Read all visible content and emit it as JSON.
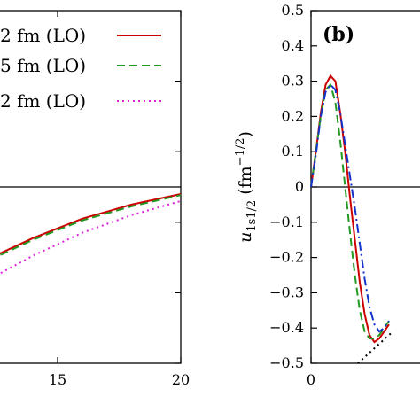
{
  "chart_data": [
    {
      "type": "line",
      "panel": "a",
      "xlim": [
        10,
        20
      ],
      "ylim": [
        -0.7,
        0.5
      ],
      "x_ticks": [
        15,
        20
      ],
      "x_tick_labels": [
        "15",
        "20"
      ],
      "legend": [
        {
          "text": "2 fm (LO)",
          "color": "#cc0000",
          "style": "solid"
        },
        {
          "text": "5 fm (LO)",
          "color": "#229922",
          "style": "dashed"
        },
        {
          "text": "2 fm (LO)",
          "color": "#dd22dd",
          "style": "dotted"
        }
      ],
      "series": [
        {
          "x": [
            10,
            12,
            14,
            16,
            18,
            20
          ],
          "y": [
            -0.285,
            -0.21,
            -0.145,
            -0.09,
            -0.05,
            -0.02
          ],
          "color": "#cc0000",
          "style": "solid"
        },
        {
          "x": [
            10,
            12,
            14,
            16,
            18,
            20
          ],
          "y": [
            -0.29,
            -0.215,
            -0.15,
            -0.095,
            -0.055,
            -0.023
          ],
          "color": "#229922",
          "style": "dashed"
        },
        {
          "x": [
            10,
            12,
            14,
            16,
            18,
            20
          ],
          "y": [
            -0.34,
            -0.27,
            -0.195,
            -0.13,
            -0.08,
            -0.04
          ],
          "color": "#dd22dd",
          "style": "dotted"
        }
      ]
    },
    {
      "type": "line",
      "panel": "b",
      "label": "(b)",
      "ylabel": "u1s1/2 (fm−1/2)",
      "ylabel_parts": {
        "symbol": "u",
        "sub": "1s1/2",
        "unit_open": "(fm",
        "unit_sup": "−1/2",
        "unit_close": ")"
      },
      "xlim": [
        0,
        10
      ],
      "ylim": [
        -0.5,
        0.5
      ],
      "y_ticks": [
        0.5,
        0.4,
        0.3,
        0.2,
        0.1,
        0,
        -0.1,
        -0.2,
        -0.3,
        -0.4,
        -0.5
      ],
      "y_tick_labels": [
        "0.5",
        "0.4",
        "0.3",
        "0.2",
        "0.1",
        "0",
        "−0.1",
        "−0.2",
        "−0.3",
        "−0.4",
        "−0.5"
      ],
      "x_ticks": [
        0
      ],
      "x_tick_labels": [
        "0"
      ],
      "series": [
        {
          "x": [
            0,
            0.25,
            0.5,
            0.75,
            1.0,
            1.25,
            1.5,
            1.75,
            2.0,
            2.25,
            2.5,
            2.75,
            3.0,
            3.25,
            3.5,
            3.75,
            4.0
          ],
          "y": [
            0,
            0.1,
            0.21,
            0.29,
            0.315,
            0.3,
            0.21,
            0.1,
            -0.03,
            -0.15,
            -0.27,
            -0.36,
            -0.42,
            -0.44,
            -0.43,
            -0.41,
            -0.39
          ],
          "color": "#cc0000",
          "style": "solid"
        },
        {
          "x": [
            0,
            0.25,
            0.5,
            0.75,
            1.0,
            1.25,
            1.5,
            1.75,
            2.0,
            2.25,
            2.5,
            2.75,
            3.0,
            3.25,
            3.5,
            3.75,
            4.0
          ],
          "y": [
            0,
            0.1,
            0.2,
            0.275,
            0.29,
            0.24,
            0.13,
            0.0,
            -0.13,
            -0.25,
            -0.35,
            -0.41,
            -0.43,
            -0.43,
            -0.42,
            -0.4,
            -0.38
          ],
          "color": "#229922",
          "style": "dashed"
        },
        {
          "x": [
            0,
            0.25,
            0.5,
            0.75,
            1.0,
            1.25,
            1.5,
            1.75,
            2.0,
            2.25,
            2.5,
            2.75,
            3.0,
            3.25,
            3.5,
            3.75,
            4.0
          ],
          "y": [
            0,
            0.09,
            0.2,
            0.27,
            0.29,
            0.275,
            0.21,
            0.12,
            0.03,
            -0.06,
            -0.16,
            -0.26,
            -0.34,
            -0.39,
            -0.41,
            -0.4,
            -0.38
          ],
          "color": "#1133cc",
          "style": "dashdot"
        },
        {
          "x": [
            2.4,
            3.0,
            3.6,
            4.2
          ],
          "y": [
            -0.5,
            -0.47,
            -0.44,
            -0.41
          ],
          "color": "#000000",
          "style": "dotted"
        }
      ]
    }
  ]
}
